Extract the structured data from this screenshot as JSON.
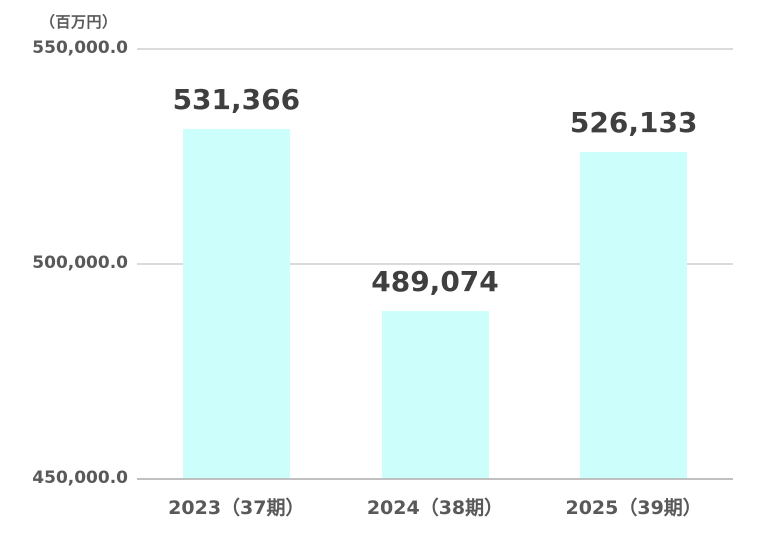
{
  "chart_data": {
    "type": "bar",
    "title": "",
    "unit_label": "（百万円）",
    "categories": [
      "2023（37期）",
      "2024（38期）",
      "2025（39期）"
    ],
    "values": [
      531366,
      489074,
      526133
    ],
    "value_labels": [
      "531,366",
      "489,074",
      "526,133"
    ],
    "ylabel": "（百万円）",
    "xlabel": "",
    "ylim": [
      450000,
      550000
    ],
    "yticks": [
      {
        "value": 550000,
        "label": "550,000.0"
      },
      {
        "value": 500000,
        "label": "500,000.0"
      },
      {
        "value": 450000,
        "label": "450,000.0"
      }
    ],
    "grid": true,
    "legend_position": "none",
    "colors": {
      "bar_fill": "#CCFFFC",
      "gridline": "#DBDBDB",
      "axis_line": "#C0C0C0",
      "value_label": "#3F3F3F",
      "tick_label": "#595959",
      "category_label": "#595959",
      "background": "#FFFFFF"
    }
  }
}
